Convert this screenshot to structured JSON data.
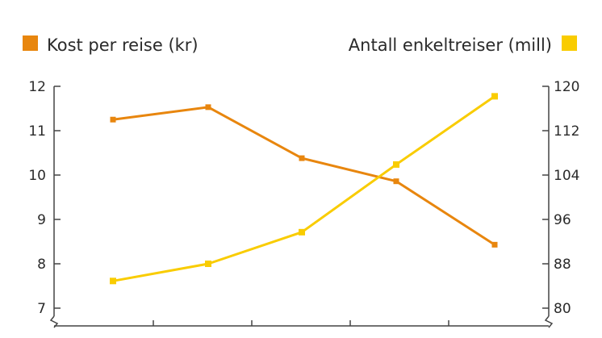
{
  "chart_data": {
    "type": "line",
    "title": "",
    "categories": [
      "1",
      "2",
      "3",
      "4",
      "5"
    ],
    "x_tick_labels_visible": false,
    "series": [
      {
        "name": "Kost per reise (kr)",
        "axis": "left",
        "color": "#e8860e",
        "values": [
          11.25,
          11.53,
          10.38,
          9.86,
          8.43
        ]
      },
      {
        "name": "Antall enkeltreiser (mill)",
        "axis": "right",
        "color": "#f9cc00",
        "values": [
          84.9,
          88.0,
          93.7,
          105.9,
          118.2
        ]
      }
    ],
    "left_axis": {
      "label": "",
      "ylim": [
        6.6,
        12
      ],
      "ticks": [
        "12",
        "11",
        "10",
        "9",
        "8",
        "7"
      ]
    },
    "right_axis": {
      "label": "",
      "ylim": [
        76.8,
        120
      ],
      "ticks": [
        "120",
        "112",
        "104",
        "96",
        "88",
        "80"
      ]
    },
    "legend": {
      "left_entry": "Kost per reise (kr)",
      "right_entry": "Antall enkeltreiser (mill)",
      "placement": "top"
    },
    "grid": false,
    "axis_color": "#444444"
  }
}
